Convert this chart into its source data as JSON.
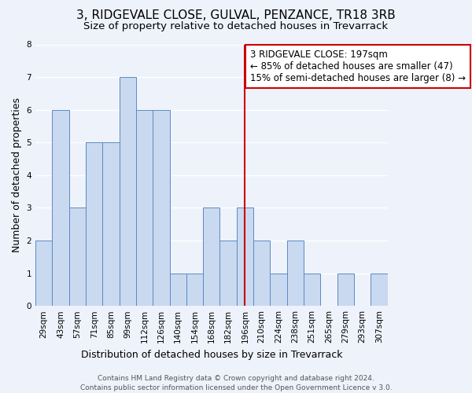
{
  "title": "3, RIDGEVALE CLOSE, GULVAL, PENZANCE, TR18 3RB",
  "subtitle": "Size of property relative to detached houses in Trevarrack",
  "xlabel": "Distribution of detached houses by size in Trevarrack",
  "ylabel": "Number of detached properties",
  "bin_labels": [
    "29sqm",
    "43sqm",
    "57sqm",
    "71sqm",
    "85sqm",
    "99sqm",
    "112sqm",
    "126sqm",
    "140sqm",
    "154sqm",
    "168sqm",
    "182sqm",
    "196sqm",
    "210sqm",
    "224sqm",
    "238sqm",
    "251sqm",
    "265sqm",
    "279sqm",
    "293sqm",
    "307sqm"
  ],
  "counts": [
    2,
    6,
    3,
    5,
    5,
    7,
    6,
    6,
    1,
    1,
    3,
    2,
    3,
    2,
    1,
    2,
    1,
    0,
    1,
    0,
    1
  ],
  "bar_color": "#c9d9f0",
  "bar_edge_color": "#5b8ac4",
  "marker_label_line1": "3 RIDGEVALE CLOSE: 197sqm",
  "marker_label_line2": "← 85% of detached houses are smaller (47)",
  "marker_label_line3": "15% of semi-detached houses are larger (8) →",
  "marker_color": "#cc0000",
  "ylim": [
    0,
    8
  ],
  "yticks": [
    0,
    1,
    2,
    3,
    4,
    5,
    6,
    7,
    8
  ],
  "footer_line1": "Contains HM Land Registry data © Crown copyright and database right 2024.",
  "footer_line2": "Contains public sector information licensed under the Open Government Licence v 3.0.",
  "background_color": "#eef2fb",
  "grid_color": "#ffffff",
  "title_fontsize": 11,
  "subtitle_fontsize": 9.5,
  "axis_label_fontsize": 9,
  "tick_fontsize": 7.5,
  "footer_fontsize": 6.5,
  "annotation_fontsize": 8.5
}
